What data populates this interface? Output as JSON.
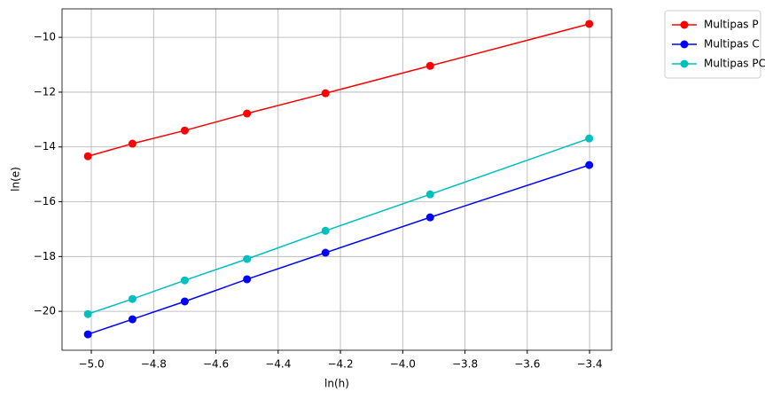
{
  "chart_data": {
    "type": "line",
    "xlabel": "ln(h)",
    "ylabel": "ln(e)",
    "x": [
      -5.011,
      -4.868,
      -4.7,
      -4.5,
      -4.248,
      -3.912,
      -3.401
    ],
    "series": [
      {
        "name": "Multipas P",
        "color": "#ff0000",
        "values": [
          -14.34,
          -13.88,
          -13.4,
          -12.78,
          -12.04,
          -11.04,
          -9.51
        ]
      },
      {
        "name": "Multipas C",
        "color": "#0000ff",
        "values": [
          -20.84,
          -20.29,
          -19.64,
          -18.83,
          -17.86,
          -16.57,
          -14.66
        ]
      },
      {
        "name": "Multipas PC",
        "color": "#00bfbf",
        "values": [
          -20.1,
          -19.55,
          -18.87,
          -18.09,
          -17.06,
          -15.73,
          -13.69
        ]
      }
    ],
    "xlim": [
      -5.094,
      -3.329
    ],
    "xticks": [
      {
        "value": -5.0,
        "label": "−5.0"
      },
      {
        "value": -4.8,
        "label": "−4.8"
      },
      {
        "value": -4.6,
        "label": "−4.6"
      },
      {
        "value": -4.4,
        "label": "−4.4"
      },
      {
        "value": -4.2,
        "label": "−4.2"
      },
      {
        "value": -4.0,
        "label": "−4.0"
      },
      {
        "value": -3.8,
        "label": "−3.8"
      },
      {
        "value": -3.6,
        "label": "−3.6"
      },
      {
        "value": -3.4,
        "label": "−3.4"
      }
    ],
    "ylim": [
      -21.42,
      -8.96
    ],
    "yticks": [
      {
        "value": -20,
        "label": "−20"
      },
      {
        "value": -18,
        "label": "−18"
      },
      {
        "value": -16,
        "label": "−16"
      },
      {
        "value": -14,
        "label": "−14"
      },
      {
        "value": -12,
        "label": "−12"
      },
      {
        "value": -10,
        "label": "−10"
      }
    ],
    "grid": true,
    "legend": "outside-top-right"
  }
}
